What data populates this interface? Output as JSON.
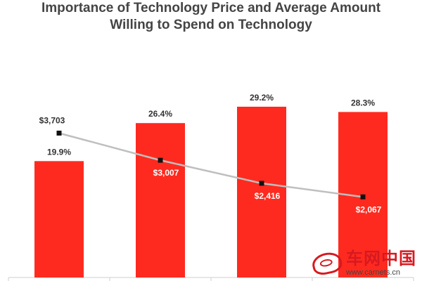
{
  "chart_data": {
    "type": "bar",
    "title_lines": [
      "Importance of Technology Price and Average Amount",
      "Willing to Spend on Technology"
    ],
    "categories": [
      "",
      "",
      "",
      ""
    ],
    "series": [
      {
        "type": "bar",
        "values": [
          19.9,
          26.4,
          29.2,
          28.3
        ],
        "labels": [
          "19.9%",
          "26.4%",
          "29.2%",
          "28.3%"
        ],
        "color": "#ff2a1f"
      },
      {
        "type": "line",
        "values": [
          3703,
          3007,
          2416,
          2067
        ],
        "labels": [
          "$3,703",
          "$3,007",
          "$2,416",
          "$2,067"
        ],
        "color": "#bfbfbf",
        "marker_color": "#111111"
      }
    ],
    "bar_ylim": [
      0,
      40
    ],
    "line_ylim": [
      0,
      6000
    ],
    "grid": false,
    "legend": "none"
  },
  "watermark": {
    "brand": "车网中国",
    "url": "www.carnets.cn",
    "icon": "car-logo-icon"
  }
}
